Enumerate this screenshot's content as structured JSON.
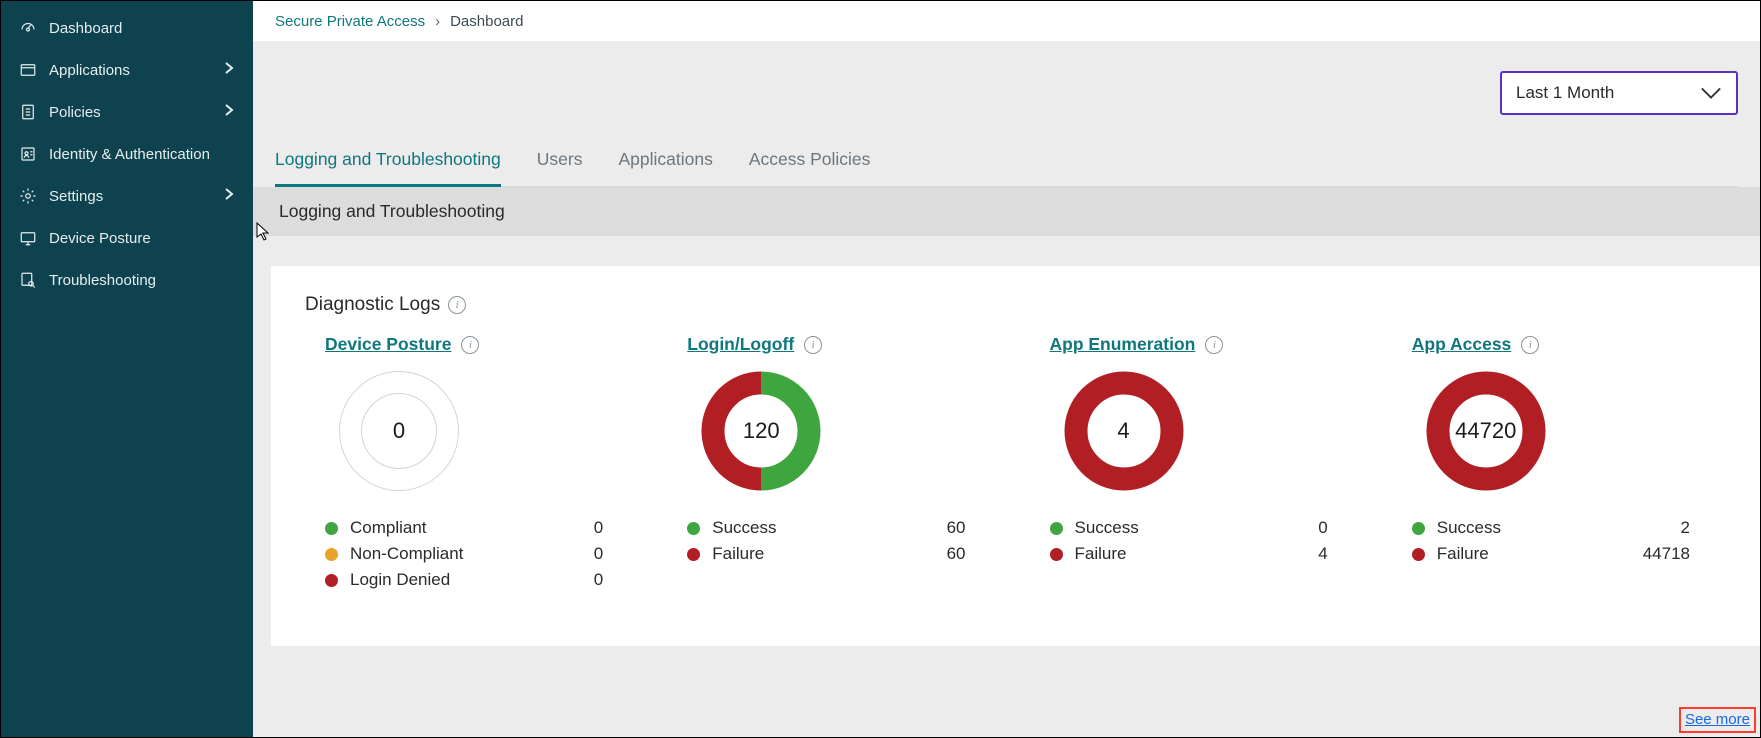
{
  "colors": {
    "sidebar_bg": "#0e424f",
    "accent": "#0f777e",
    "select_border": "#5b2fbf",
    "green": "#3fa53f",
    "yellow": "#e8a32b",
    "red": "#b11f24",
    "see_more_border": "#ff3b30",
    "link": "#1668e3"
  },
  "sidebar": {
    "items": [
      {
        "label": "Dashboard",
        "icon": "gauge",
        "expandable": false,
        "active": true
      },
      {
        "label": "Applications",
        "icon": "window",
        "expandable": true,
        "active": false
      },
      {
        "label": "Policies",
        "icon": "doc-list",
        "expandable": true,
        "active": false
      },
      {
        "label": "Identity & Authentication",
        "icon": "id-badge",
        "expandable": false,
        "active": false
      },
      {
        "label": "Settings",
        "icon": "gear",
        "expandable": true,
        "active": false
      },
      {
        "label": "Device Posture",
        "icon": "device",
        "expandable": false,
        "active": false
      },
      {
        "label": "Troubleshooting",
        "icon": "search-doc",
        "expandable": false,
        "active": false
      }
    ]
  },
  "breadcrumb": {
    "root": "Secure Private Access",
    "sep": "›",
    "current": "Dashboard"
  },
  "time_selector": {
    "label": "Last 1 Month"
  },
  "tabs": [
    {
      "label": "Logging and Troubleshooting",
      "selected": true
    },
    {
      "label": "Users",
      "selected": false
    },
    {
      "label": "Applications",
      "selected": false
    },
    {
      "label": "Access Policies",
      "selected": false
    }
  ],
  "section_header": "Logging and Troubleshooting",
  "card": {
    "title": "Diagnostic Logs",
    "see_more": "See more",
    "metrics": [
      {
        "title": "Device Posture",
        "total": "0",
        "empty": true,
        "slices": [],
        "legend": [
          {
            "label": "Compliant",
            "value": "0",
            "color": "#3fa53f"
          },
          {
            "label": "Non-Compliant",
            "value": "0",
            "color": "#e8a32b"
          },
          {
            "label": "Login Denied",
            "value": "0",
            "color": "#b11f24"
          }
        ]
      },
      {
        "title": "Login/Logoff",
        "total": "120",
        "empty": false,
        "slices": [
          {
            "color": "#3fa53f",
            "fraction": 0.5
          },
          {
            "color": "#b11f24",
            "fraction": 0.5
          }
        ],
        "legend": [
          {
            "label": "Success",
            "value": "60",
            "color": "#3fa53f"
          },
          {
            "label": "Failure",
            "value": "60",
            "color": "#b11f24"
          }
        ]
      },
      {
        "title": "App Enumeration",
        "total": "4",
        "empty": false,
        "slices": [
          {
            "color": "#b11f24",
            "fraction": 1.0
          }
        ],
        "legend": [
          {
            "label": "Success",
            "value": "0",
            "color": "#3fa53f"
          },
          {
            "label": "Failure",
            "value": "4",
            "color": "#b11f24"
          }
        ]
      },
      {
        "title": "App Access",
        "total": "44720",
        "empty": false,
        "slices": [
          {
            "color": "#3fa53f",
            "fraction": 4e-05
          },
          {
            "color": "#b11f24",
            "fraction": 0.99996
          }
        ],
        "legend": [
          {
            "label": "Success",
            "value": "2",
            "color": "#3fa53f"
          },
          {
            "label": "Failure",
            "value": "44718",
            "color": "#b11f24"
          }
        ]
      }
    ]
  }
}
